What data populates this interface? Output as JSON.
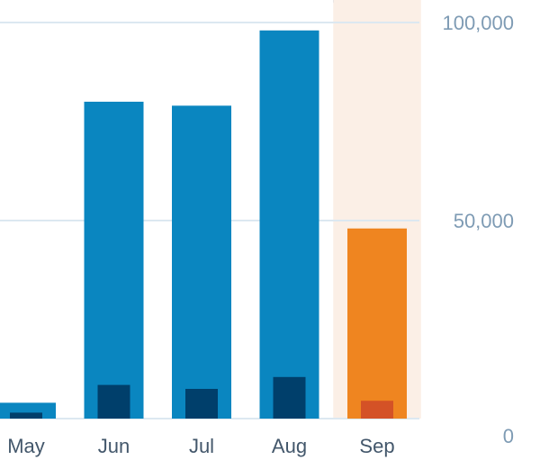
{
  "chart_data": {
    "type": "bar",
    "categories": [
      "May",
      "Jun",
      "Jul",
      "Aug",
      "Sep"
    ],
    "series": [
      {
        "values": [
          4000,
          80000,
          79000,
          98000,
          48000
        ],
        "color": "#0a86c0",
        "highlight_color": "#ef8520"
      },
      {
        "values": [
          1500,
          8500,
          7500,
          10500,
          4500
        ],
        "color": "#003f6b",
        "highlight_color": "#d45226"
      }
    ],
    "highlighted_category": "Sep",
    "highlight_band_color": "#fbefe6",
    "yticks": [
      0,
      50000,
      100000
    ],
    "ytick_labels": [
      "0",
      "50,000",
      "100,000"
    ],
    "ylim": [
      0,
      100000
    ],
    "grid": true,
    "y_axis_position": "right",
    "gridline_color": "#dce8f1"
  }
}
